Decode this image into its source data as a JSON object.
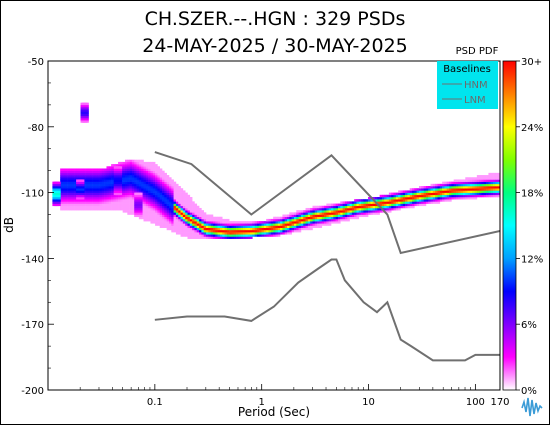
{
  "chart_data": {
    "type": "heatmap",
    "title": "CH.SZER.--.HGN : 329 PSDs",
    "subtitle": "24-MAY-2025 / 30-MAY-2025",
    "xlabel": "Period (Sec)",
    "ylabel": "dB",
    "x_scale": "log",
    "xlim": [
      0.01,
      170
    ],
    "ylim": [
      -200,
      -50
    ],
    "x_ticks": [
      {
        "value": 0.1,
        "label": "0.1"
      },
      {
        "value": 1,
        "label": "1"
      },
      {
        "value": 10,
        "label": "10"
      },
      {
        "value": 100,
        "label": "100"
      },
      {
        "value": 170,
        "label": "170"
      }
    ],
    "y_ticks": [
      {
        "value": -50,
        "label": "-50"
      },
      {
        "value": -80,
        "label": "-80"
      },
      {
        "value": -110,
        "label": "-110"
      },
      {
        "value": -140,
        "label": "-140"
      },
      {
        "value": -170,
        "label": "-170"
      },
      {
        "value": -200,
        "label": "-200"
      }
    ],
    "colorbar": {
      "title": "PSD PDF",
      "colors": [
        "#ffffff",
        "#ff00ff",
        "#8000ff",
        "#0000ff",
        "#00a0ff",
        "#00ffff",
        "#00ff80",
        "#80ff00",
        "#ffff00",
        "#ff8000",
        "#ff0000"
      ],
      "ticks": [
        {
          "value": 0,
          "label": "0%"
        },
        {
          "value": 6,
          "label": "6%"
        },
        {
          "value": 12,
          "label": "12%"
        },
        {
          "value": 18,
          "label": "18%"
        },
        {
          "value": 24,
          "label": "24%"
        },
        {
          "value": 30,
          "label": "30+"
        }
      ]
    },
    "legend": {
      "title": "Baselines",
      "placement": "top-right",
      "background": "#00e5ee",
      "entries": [
        "HNM",
        "LNM"
      ]
    },
    "baselines": [
      {
        "name": "HNM",
        "color": "#707070",
        "points": [
          [
            0.1,
            -91.5
          ],
          [
            0.22,
            -97
          ],
          [
            0.8,
            -120
          ],
          [
            4.5,
            -93
          ],
          [
            15,
            -120
          ],
          [
            20,
            -137.5
          ],
          [
            170,
            -127.5
          ]
        ]
      },
      {
        "name": "LNM",
        "color": "#707070",
        "points": [
          [
            0.1,
            -168
          ],
          [
            0.2,
            -166.5
          ],
          [
            0.45,
            -166.5
          ],
          [
            0.8,
            -168.5
          ],
          [
            1.3,
            -162
          ],
          [
            2.2,
            -151
          ],
          [
            3.3,
            -145
          ],
          [
            4.5,
            -140.5
          ],
          [
            5,
            -140.5
          ],
          [
            6,
            -150
          ],
          [
            9,
            -160
          ],
          [
            12,
            -164.5
          ],
          [
            15,
            -160
          ],
          [
            20,
            -177
          ],
          [
            25,
            -180
          ],
          [
            40,
            -186.5
          ],
          [
            80,
            -186.5
          ],
          [
            100,
            -184
          ],
          [
            170,
            -184
          ]
        ]
      }
    ],
    "pdf_mode": {
      "color": "#ff0000",
      "points": [
        [
          0.03,
          -107
        ],
        [
          0.06,
          -104
        ],
        [
          0.1,
          -110
        ],
        [
          0.2,
          -122
        ],
        [
          0.3,
          -127
        ],
        [
          0.5,
          -128.5
        ],
        [
          0.8,
          -128
        ],
        [
          1.5,
          -126
        ],
        [
          3,
          -121.5
        ],
        [
          5,
          -119.5
        ],
        [
          8,
          -117
        ],
        [
          15,
          -115
        ],
        [
          30,
          -112
        ],
        [
          60,
          -109.5
        ],
        [
          170,
          -108
        ]
      ]
    },
    "pdf_min_edge": [
      [
        0.013,
        -118
      ],
      [
        0.05,
        -118
      ],
      [
        0.1,
        -124
      ],
      [
        0.2,
        -130
      ],
      [
        0.4,
        -131
      ],
      [
        0.8,
        -130
      ],
      [
        1.5,
        -129
      ],
      [
        3,
        -126
      ],
      [
        8,
        -121
      ],
      [
        20,
        -117
      ],
      [
        60,
        -113
      ],
      [
        170,
        -111
      ]
    ],
    "pdf_max_edge": [
      [
        0.013,
        -100
      ],
      [
        0.03,
        -101
      ],
      [
        0.06,
        -96
      ],
      [
        0.1,
        -98
      ],
      [
        0.2,
        -112
      ],
      [
        0.3,
        -121
      ],
      [
        0.5,
        -124
      ],
      [
        1,
        -124.5
      ],
      [
        3,
        -118
      ],
      [
        10,
        -114
      ],
      [
        30,
        -109
      ],
      [
        80,
        -105
      ],
      [
        170,
        -102
      ]
    ],
    "pdf_clusters": [
      {
        "x": 0.022,
        "y": -74,
        "y_spread": 4,
        "pct": 8
      },
      {
        "x": 0.012,
        "y": -111,
        "y_spread": 5,
        "pct": 16
      },
      {
        "x": 0.02,
        "y": -109,
        "y_spread": 4,
        "pct": 10
      },
      {
        "x": 0.045,
        "y": -105,
        "y_spread": 6,
        "pct": 9
      },
      {
        "x": 0.07,
        "y": -116,
        "y_spread": 5,
        "pct": 6
      }
    ]
  }
}
